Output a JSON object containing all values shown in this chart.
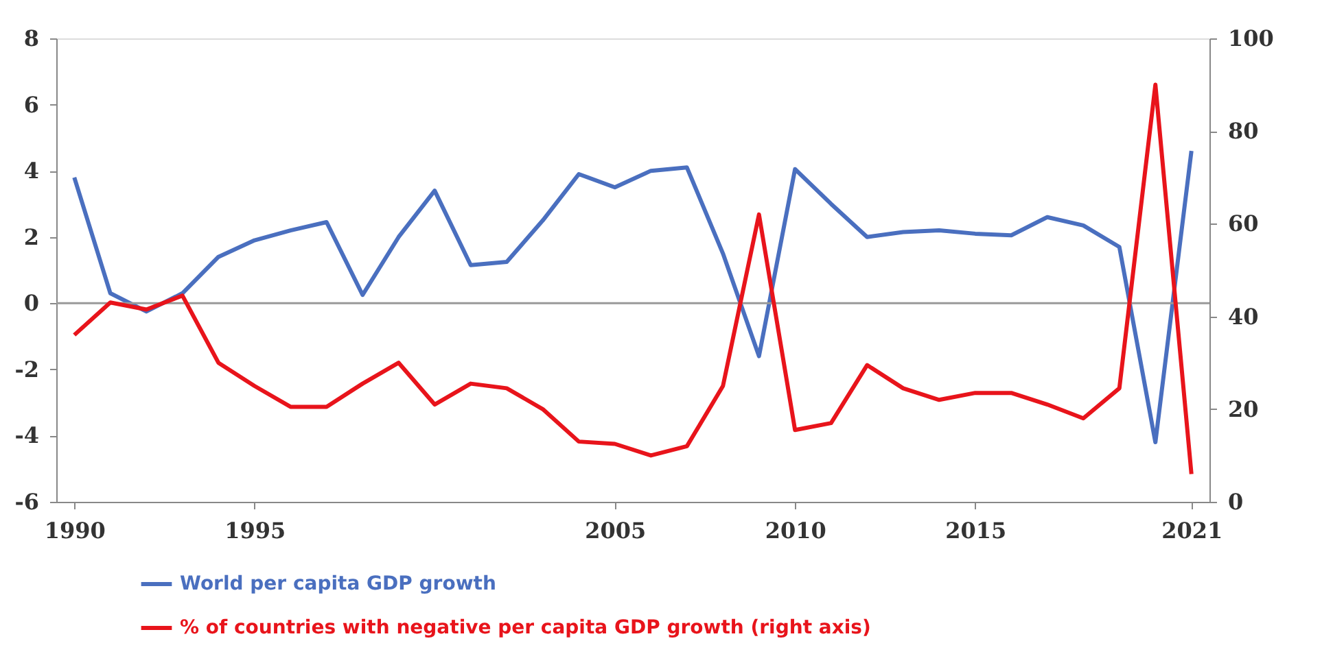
{
  "chart_data": {
    "type": "line",
    "x": [
      1990,
      1991,
      1992,
      1993,
      1994,
      1995,
      1996,
      1997,
      1998,
      1999,
      2000,
      2001,
      2002,
      2003,
      2004,
      2005,
      2006,
      2007,
      2008,
      2009,
      2010,
      2011,
      2012,
      2013,
      2014,
      2015,
      2016,
      2017,
      2018,
      2019,
      2020,
      2021
    ],
    "series": [
      {
        "name": "World per capita GDP growth",
        "color": "#4a6fbf",
        "values": [
          3.8,
          0.3,
          -0.25,
          0.3,
          1.4,
          1.9,
          2.2,
          2.45,
          0.25,
          2.0,
          3.4,
          1.15,
          1.25,
          2.5,
          3.9,
          3.5,
          4.0,
          4.1,
          1.5,
          -1.6,
          4.05,
          3.0,
          2.0,
          2.15,
          2.2,
          2.1,
          2.05,
          2.6,
          2.35,
          1.7,
          -4.2,
          4.6
        ]
      },
      {
        "name": "% of countries with negative per capita GDP growth (right axis)",
        "color": "#e8141b",
        "axis": "y2",
        "values": [
          36,
          43,
          41.5,
          44.5,
          30,
          25,
          20.5,
          20.5,
          25.5,
          30,
          21,
          25.5,
          24.5,
          20,
          13,
          12.5,
          10,
          12,
          25,
          62,
          15.5,
          17,
          29.5,
          24.5,
          22,
          23.5,
          23.5,
          21,
          18,
          24.5,
          90,
          6
        ]
      }
    ],
    "xlim": [
      1989.5,
      2021.5
    ],
    "xticks": [
      1990,
      1995,
      2005,
      2010,
      2015,
      2021
    ],
    "ylim": [
      -6,
      8
    ],
    "yticks": [
      -6,
      -4,
      -2,
      0,
      2,
      4,
      6,
      8
    ],
    "y2lim": [
      0,
      100
    ],
    "y2ticks": [
      0,
      20,
      40,
      60,
      80,
      100
    ],
    "ref_lines": [
      {
        "axis": "y",
        "value": 0,
        "color": "#999999"
      }
    ],
    "legend": "bottom left",
    "grid": false,
    "marker": "none",
    "line_style": "solid"
  }
}
